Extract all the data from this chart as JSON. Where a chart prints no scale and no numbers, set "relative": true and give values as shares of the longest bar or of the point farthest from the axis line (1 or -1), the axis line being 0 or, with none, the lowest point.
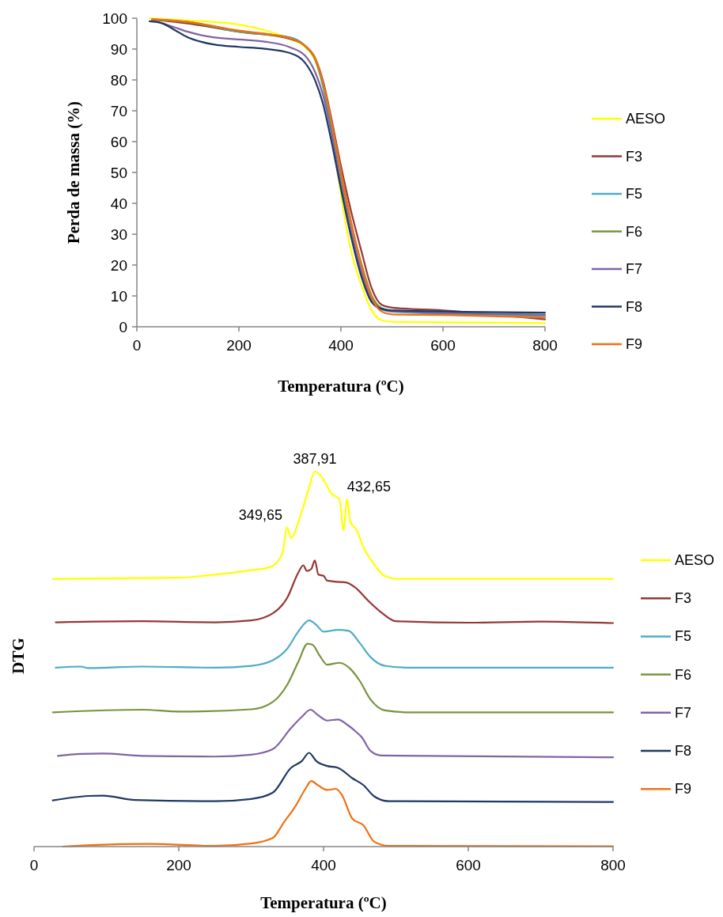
{
  "chart_data": [
    {
      "type": "line",
      "xlabel": "Temperatura (ºC)",
      "ylabel": "Perda de massa (%)",
      "xlim": [
        0,
        800
      ],
      "xticks": [
        0,
        200,
        400,
        600,
        800
      ],
      "ylim": [
        0,
        100
      ],
      "yticks": [
        0,
        10,
        20,
        30,
        40,
        50,
        60,
        70,
        80,
        90,
        100
      ],
      "grid": false,
      "legend": "right",
      "series": [
        {
          "name": "AESO",
          "color": "#ffff00",
          "x": [
            25,
            100,
            200,
            250,
            300,
            330,
            350,
            365,
            380,
            390,
            400,
            420,
            440,
            460,
            480,
            500,
            800
          ],
          "values": [
            100,
            99.3,
            97.9,
            96.1,
            93.3,
            90.6,
            86,
            77.7,
            64.9,
            53.9,
            42.9,
            24.6,
            13.6,
            5.3,
            2.1,
            1.6,
            1.2
          ]
        },
        {
          "name": "F3",
          "color": "#953735",
          "x": [
            30,
            100,
            200,
            300,
            330,
            350,
            365,
            380,
            400,
            420,
            440,
            460,
            480,
            500,
            600,
            800
          ],
          "values": [
            99.5,
            98.3,
            95.6,
            93.3,
            91,
            86.9,
            79.6,
            68.6,
            52.1,
            37.4,
            24.6,
            12.6,
            7.1,
            6.2,
            5.3,
            2.4
          ]
        },
        {
          "name": "F5",
          "color": "#4bacc6",
          "x": [
            30,
            100,
            200,
            300,
            330,
            350,
            365,
            380,
            400,
            420,
            440,
            460,
            480,
            500,
            800
          ],
          "values": [
            99.5,
            98.8,
            95.6,
            93.8,
            91,
            86.4,
            77.7,
            64.9,
            45.6,
            30.1,
            17.2,
            8.1,
            5.5,
            4.9,
            3.5
          ]
        },
        {
          "name": "F6",
          "color": "#77933c",
          "x": [
            30,
            100,
            200,
            300,
            330,
            350,
            365,
            380,
            400,
            420,
            440,
            460,
            480,
            500,
            800
          ],
          "values": [
            99.6,
            98.7,
            95.8,
            93.6,
            90.9,
            86.5,
            78.8,
            67.4,
            49.5,
            33.5,
            20.5,
            10.2,
            6,
            5.2,
            3.9
          ]
        },
        {
          "name": "F7",
          "color": "#8064a2",
          "x": [
            30,
            75,
            100,
            150,
            200,
            250,
            300,
            330,
            350,
            365,
            380,
            400,
            420,
            440,
            460,
            480,
            500,
            800
          ],
          "values": [
            99.5,
            97,
            95.6,
            93.8,
            93.1,
            92.4,
            90.6,
            87.8,
            82.3,
            75,
            64,
            46.6,
            31,
            18.1,
            9,
            5.8,
            5,
            3.9
          ]
        },
        {
          "name": "F8",
          "color": "#1f3864",
          "x": [
            25,
            50,
            75,
            100,
            125,
            150,
            200,
            250,
            300,
            330,
            350,
            365,
            380,
            400,
            420,
            440,
            460,
            480,
            500,
            800
          ],
          "values": [
            99,
            98.3,
            96.1,
            93.8,
            92.4,
            91.5,
            90.7,
            90.1,
            88.7,
            85.5,
            79.6,
            72.2,
            61.2,
            44.7,
            29.1,
            16.3,
            8.1,
            5.8,
            5.3,
            4.6
          ]
        },
        {
          "name": "F9",
          "color": "#f07010",
          "x": [
            30,
            100,
            200,
            300,
            330,
            350,
            365,
            380,
            400,
            420,
            440,
            460,
            480,
            500,
            600,
            800
          ],
          "values": [
            99.7,
            98.8,
            96,
            93.5,
            91,
            86.8,
            79,
            67.8,
            50.5,
            34,
            20,
            9.5,
            4.9,
            4,
            3.8,
            3
          ]
        }
      ]
    },
    {
      "type": "line",
      "xlabel": "Temperatura (ºC)",
      "ylabel": "DTG",
      "xlim": [
        0,
        800
      ],
      "xticks": [
        0,
        200,
        400,
        600,
        800
      ],
      "relative": true,
      "tick_labels": "x",
      "legend": "right",
      "annotations": [
        {
          "text": "349,65",
          "x": 349.65,
          "y": 0.851
        },
        {
          "text": "387,91",
          "x": 387.91,
          "y": 1
        },
        {
          "text": "432,65",
          "x": 432.65,
          "y": 0.926
        }
      ],
      "series": [
        {
          "name": "AESO",
          "color": "#ffff00",
          "x": [
            26,
            200,
            250,
            300,
            326,
            343,
            349.65,
            355,
            367,
            380,
            387.91,
            397,
            411,
            422,
            427.5,
            432.65,
            437,
            445,
            456,
            469,
            485,
            501,
            800
          ],
          "values": [
            0.714,
            0.717,
            0.725,
            0.737,
            0.745,
            0.78,
            0.851,
            0.823,
            0.876,
            0.957,
            1,
            0.987,
            0.941,
            0.926,
            0.844,
            0.926,
            0.866,
            0.846,
            0.795,
            0.755,
            0.721,
            0.714,
            0.714
          ]
        },
        {
          "name": "F3",
          "color": "#953735",
          "x": [
            30,
            150,
            250,
            300,
            330,
            350,
            365,
            372,
            377,
            383,
            388,
            393,
            400,
            405,
            420,
            432,
            445,
            460,
            480,
            500,
            600,
            700,
            800
          ],
          "values": [
            0.598,
            0.601,
            0.598,
            0.603,
            0.622,
            0.664,
            0.73,
            0.75,
            0.735,
            0.74,
            0.763,
            0.725,
            0.722,
            0.709,
            0.706,
            0.704,
            0.689,
            0.659,
            0.624,
            0.601,
            0.597,
            0.6,
            0.596
          ]
        },
        {
          "name": "F5",
          "color": "#4bacc6",
          "x": [
            30,
            65,
            75,
            150,
            250,
            300,
            330,
            350,
            365,
            380,
            390,
            400,
            420,
            435,
            450,
            465,
            485,
            520,
            800
          ],
          "values": [
            0.477,
            0.48,
            0.476,
            0.48,
            0.477,
            0.482,
            0.497,
            0.528,
            0.573,
            0.603,
            0.591,
            0.573,
            0.578,
            0.575,
            0.543,
            0.505,
            0.482,
            0.477,
            0.477
          ]
        },
        {
          "name": "F6",
          "color": "#77933c",
          "x": [
            26,
            150,
            200,
            300,
            330,
            350,
            365,
            378,
            385,
            395,
            405,
            422,
            437,
            450,
            465,
            485,
            520,
            800
          ],
          "values": [
            0.358,
            0.365,
            0.36,
            0.366,
            0.386,
            0.432,
            0.492,
            0.541,
            0.538,
            0.508,
            0.485,
            0.49,
            0.474,
            0.442,
            0.392,
            0.363,
            0.358,
            0.358
          ]
        },
        {
          "name": "F7",
          "color": "#8064a2",
          "x": [
            33,
            65,
            95,
            150,
            250,
            300,
            330,
            355,
            370,
            382,
            392,
            405,
            420,
            432,
            445,
            453,
            465,
            480,
            800
          ],
          "values": [
            0.242,
            0.247,
            0.248,
            0.242,
            0.24,
            0.245,
            0.26,
            0.316,
            0.346,
            0.365,
            0.351,
            0.336,
            0.339,
            0.326,
            0.306,
            0.291,
            0.255,
            0.243,
            0.238
          ]
        },
        {
          "name": "F8",
          "color": "#1f3864",
          "x": [
            26,
            75,
            95,
            140,
            250,
            300,
            330,
            355,
            370,
            380,
            390,
            405,
            420,
            440,
            455,
            470,
            490,
            800
          ],
          "values": [
            0.123,
            0.135,
            0.136,
            0.124,
            0.121,
            0.127,
            0.144,
            0.21,
            0.228,
            0.25,
            0.228,
            0.215,
            0.21,
            0.182,
            0.164,
            0.134,
            0.121,
            0.119
          ]
        },
        {
          "name": "F9",
          "color": "#f07010",
          "x": [
            40,
            80,
            160,
            250,
            300,
            330,
            345,
            360,
            375,
            383,
            392,
            405,
            417,
            425,
            440,
            455,
            470,
            490,
            800
          ],
          "values": [
            0,
            0.004,
            0.007,
            0.002,
            0.008,
            0.023,
            0.064,
            0.104,
            0.154,
            0.175,
            0.164,
            0.151,
            0.154,
            0.139,
            0.074,
            0.057,
            0.013,
            0.002,
            0.001
          ]
        }
      ]
    }
  ]
}
